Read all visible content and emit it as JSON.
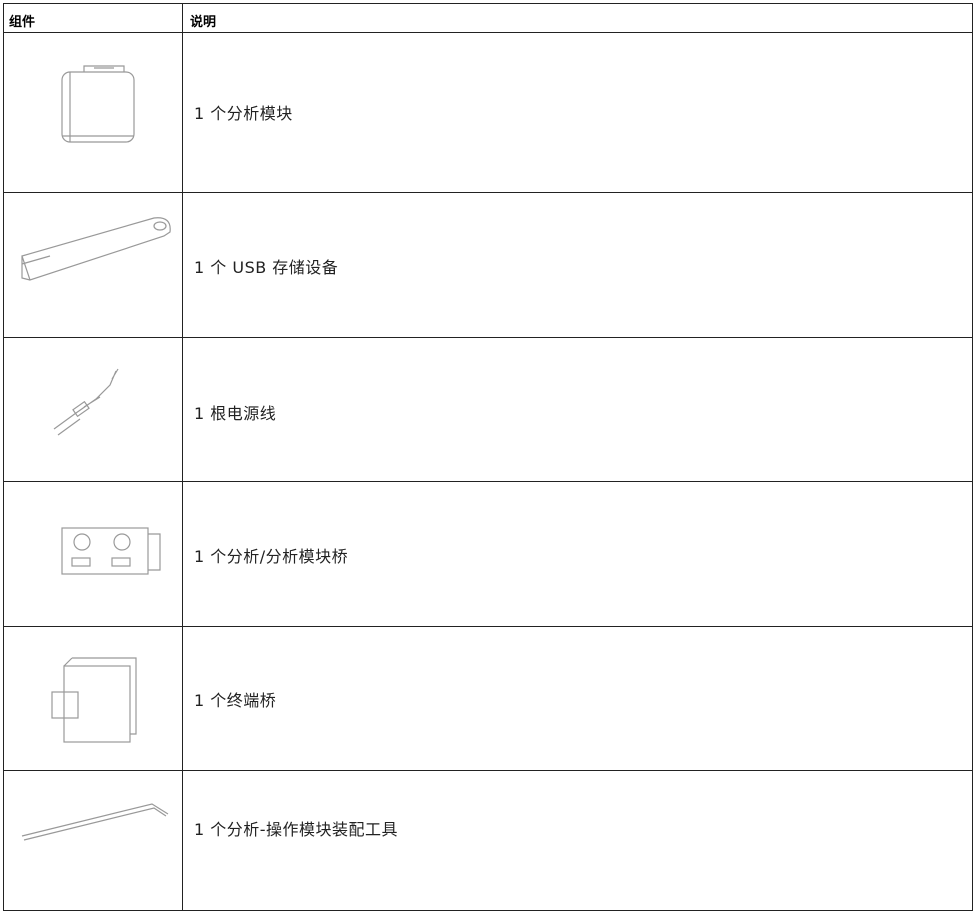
{
  "table": {
    "columns": [
      "组件",
      "说明"
    ],
    "rows": [
      {
        "description": "1 个分析模块"
      },
      {
        "description": "1 个 USB 存储设备"
      },
      {
        "description": "1 根电源线"
      },
      {
        "description": "1 个分析/分析模块桥"
      },
      {
        "description": "1 个终端桥"
      },
      {
        "description": "1 个分析-操作模块装配工具"
      }
    ]
  }
}
